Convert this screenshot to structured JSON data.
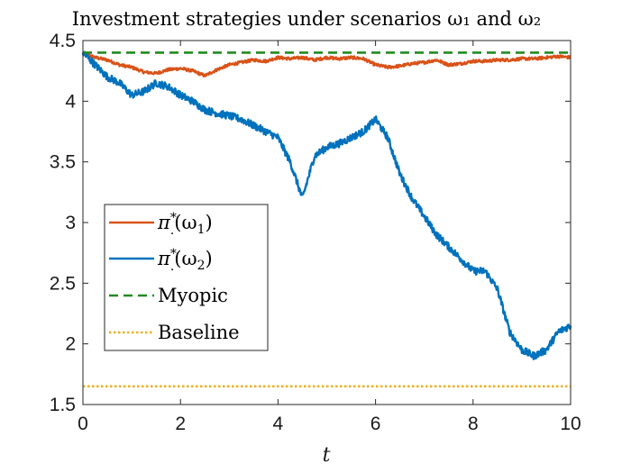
{
  "chart_data": {
    "type": "line",
    "title": "Investment strategies under scenarios ω₁ and ω₂",
    "xlabel": "t",
    "ylabel": "",
    "xlim": [
      0,
      10
    ],
    "ylim": [
      1.5,
      4.5
    ],
    "x_ticks": [
      "0",
      "2",
      "4",
      "6",
      "8",
      "10"
    ],
    "y_ticks": [
      "1.5",
      "2",
      "2.5",
      "3",
      "3.5",
      "4",
      "4.5"
    ],
    "grid": false,
    "legend_position": "middle-left",
    "series": [
      {
        "name": "π*.(ω₁)",
        "color": "#D95319",
        "style": "solid",
        "x": [
          0,
          0.25,
          0.5,
          0.75,
          1.0,
          1.25,
          1.5,
          1.75,
          2.0,
          2.25,
          2.5,
          2.75,
          3.0,
          3.25,
          3.5,
          3.75,
          4.0,
          4.25,
          4.5,
          4.75,
          5.0,
          5.25,
          5.5,
          5.75,
          6.0,
          6.25,
          6.5,
          6.75,
          7.0,
          7.25,
          7.5,
          7.75,
          8.0,
          8.25,
          8.5,
          8.75,
          9.0,
          9.25,
          9.5,
          9.75,
          10.0
        ],
        "values": [
          4.4,
          4.36,
          4.34,
          4.3,
          4.28,
          4.24,
          4.23,
          4.26,
          4.27,
          4.25,
          4.21,
          4.26,
          4.3,
          4.32,
          4.34,
          4.33,
          4.36,
          4.35,
          4.36,
          4.34,
          4.36,
          4.35,
          4.36,
          4.35,
          4.3,
          4.28,
          4.29,
          4.31,
          4.32,
          4.34,
          4.3,
          4.31,
          4.33,
          4.33,
          4.34,
          4.34,
          4.35,
          4.35,
          4.36,
          4.37,
          4.36
        ]
      },
      {
        "name": "π*.(ω₂)",
        "color": "#0072BD",
        "style": "solid",
        "x": [
          0,
          0.25,
          0.5,
          0.75,
          1.0,
          1.25,
          1.5,
          1.75,
          2.0,
          2.25,
          2.5,
          2.75,
          3.0,
          3.25,
          3.5,
          3.75,
          4.0,
          4.25,
          4.5,
          4.75,
          5.0,
          5.25,
          5.5,
          5.75,
          6.0,
          6.25,
          6.5,
          6.75,
          7.0,
          7.25,
          7.5,
          7.75,
          8.0,
          8.25,
          8.5,
          8.75,
          9.0,
          9.25,
          9.5,
          9.75,
          10.0
        ],
        "values": [
          4.4,
          4.3,
          4.2,
          4.15,
          4.05,
          4.08,
          4.15,
          4.12,
          4.05,
          4.0,
          3.93,
          3.9,
          3.88,
          3.85,
          3.8,
          3.75,
          3.7,
          3.5,
          3.2,
          3.55,
          3.62,
          3.65,
          3.7,
          3.75,
          3.85,
          3.7,
          3.4,
          3.2,
          3.05,
          2.9,
          2.8,
          2.7,
          2.6,
          2.6,
          2.45,
          2.1,
          1.95,
          1.9,
          1.95,
          2.1,
          2.15
        ]
      },
      {
        "name": "Myopic",
        "color": "#228B22",
        "style": "dashed",
        "x": [
          0,
          10
        ],
        "values": [
          4.4,
          4.4
        ]
      },
      {
        "name": "Baseline",
        "color": "#EDB120",
        "style": "dotted",
        "x": [
          0,
          10
        ],
        "values": [
          1.65,
          1.65
        ]
      }
    ],
    "legend": [
      {
        "label_main": "π",
        "label_sup": "*",
        "label_sub": ".",
        "label_arg": "(ω",
        "label_arg_sub": "1",
        "label_end": ")"
      },
      {
        "label_main": "π",
        "label_sup": "*",
        "label_sub": ".",
        "label_arg": "(ω",
        "label_arg_sub": "2",
        "label_end": ")"
      },
      {
        "label_text": "Myopic"
      },
      {
        "label_text": "Baseline"
      }
    ]
  }
}
